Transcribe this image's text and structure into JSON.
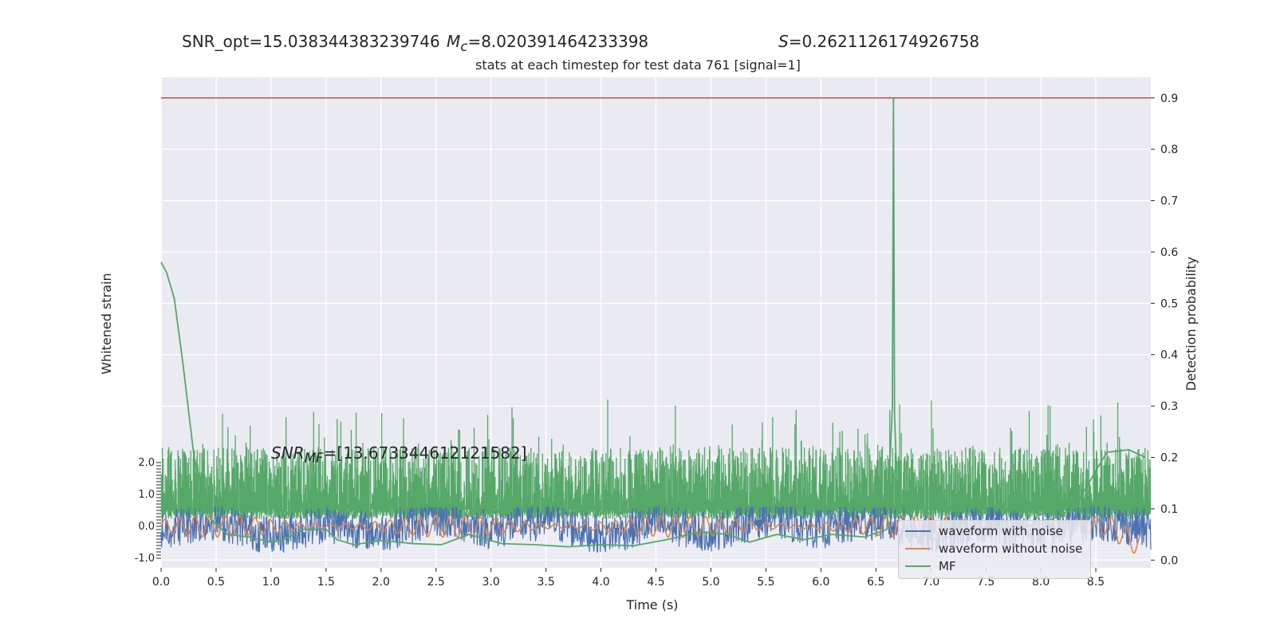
{
  "header": {
    "snr_opt": "SNR_opt=15.038344383239746",
    "mc_symbol": "M",
    "mc_sub": "c",
    "mc_value": "=8.020391464233398",
    "s_symbol": "S",
    "s_value": "=0.2621126174926758",
    "subtitle": "stats at each timestep for test data 761 [signal=1]",
    "snr_mf_symbol": "SNR",
    "snr_mf_sub": "MF",
    "snr_mf_value": "=[13.673344612121582]"
  },
  "colors": {
    "background": "#eaeaf2",
    "grid": "#ffffff",
    "noise": "#4c72b0",
    "clean": "#dd8452",
    "mf": "#55a868",
    "threshold": "#c44e52"
  },
  "chart_data": {
    "type": "line",
    "xlabel": "Time (s)",
    "ylabel_left": "Whitened strain",
    "ylabel_right": "Detection probability",
    "x_range": [
      0,
      9
    ],
    "x_ticks": [
      "0.0",
      "0.5",
      "1.0",
      "1.5",
      "2.0",
      "2.5",
      "3.0",
      "3.5",
      "4.0",
      "4.5",
      "5.0",
      "5.5",
      "6.0",
      "6.5",
      "7.0",
      "7.5",
      "8.0",
      "8.5"
    ],
    "x_tick_values": [
      0,
      0.5,
      1,
      1.5,
      2,
      2.5,
      3,
      3.5,
      4,
      4.5,
      5,
      5.5,
      6,
      6.5,
      7,
      7.5,
      8,
      8.5
    ],
    "y_right_range": [
      -0.015,
      0.94
    ],
    "y_right_ticks": [
      "0.0",
      "0.1",
      "0.2",
      "0.3",
      "0.4",
      "0.5",
      "0.6",
      "0.7",
      "0.8",
      "0.9"
    ],
    "y_right_tick_values": [
      0,
      0.1,
      0.2,
      0.3,
      0.4,
      0.5,
      0.6,
      0.7,
      0.8,
      0.9
    ],
    "y_left_range": [
      -1.0,
      2.0
    ],
    "y_left_ticks": [
      "2.0",
      "1.0",
      "0.0",
      "-1.0"
    ],
    "y_left_tick_values": [
      2.0,
      1.0,
      0.0,
      -1.0
    ],
    "threshold": 0.9,
    "legend": {
      "placement": "lower-right",
      "entries": [
        "waveform with noise",
        "waveform without noise",
        "MF"
      ]
    },
    "series": [
      {
        "name": "waveform with noise",
        "axis": "left",
        "note_envelope": [
          -0.8,
          0.6
        ],
        "x": [
          0,
          0.5,
          1,
          1.5,
          2,
          2.5,
          3,
          3.5,
          4,
          4.5,
          5,
          5.5,
          6,
          6.5,
          7,
          7.5,
          8,
          8.5,
          9
        ],
        "y": [
          -0.1,
          0.2,
          -0.3,
          0.1,
          -0.2,
          0.3,
          -0.1,
          0.2,
          -0.3,
          0.1,
          -0.2,
          0.3,
          -0.1,
          0.2,
          -0.3,
          0.1,
          -0.2,
          0.2,
          -0.1
        ]
      },
      {
        "name": "waveform without noise",
        "axis": "left",
        "x": [
          0,
          0.5,
          1,
          1.5,
          2,
          2.5,
          3,
          3.5,
          4,
          4.5,
          5,
          5.5,
          6,
          6.5,
          7,
          7.5,
          8,
          8.5,
          8.9
        ],
        "y": [
          0.0,
          0.05,
          -0.05,
          0.05,
          -0.05,
          0.05,
          -0.05,
          0.05,
          -0.05,
          0.05,
          -0.05,
          0.05,
          -0.05,
          0.05,
          -0.05,
          0.1,
          -0.1,
          0.2,
          -0.6
        ]
      },
      {
        "name": "MF",
        "axis": "right",
        "noise_band": [
          0.09,
          0.22
        ],
        "x": [
          0,
          0.05,
          0.12,
          0.2,
          0.3,
          0.45,
          0.6,
          0.8,
          1.0,
          1.1,
          1.3,
          1.5,
          1.6,
          1.75,
          2.0,
          2.3,
          2.55,
          2.8,
          3.1,
          3.4,
          3.7,
          4.0,
          4.3,
          4.6,
          4.9,
          5.15,
          5.35,
          5.6,
          5.85,
          6.1,
          6.4,
          6.6,
          6.65,
          6.66,
          6.67,
          6.7,
          6.8,
          7.0,
          7.3,
          7.6,
          8.0,
          8.3,
          8.6,
          8.8,
          8.95
        ],
        "y": [
          0.58,
          0.56,
          0.51,
          0.38,
          0.2,
          0.08,
          0.05,
          0.045,
          0.035,
          0.038,
          0.06,
          0.06,
          0.04,
          0.03,
          0.038,
          0.032,
          0.03,
          0.05,
          0.032,
          0.03,
          0.026,
          0.03,
          0.028,
          0.04,
          0.055,
          0.05,
          0.035,
          0.05,
          0.04,
          0.05,
          0.045,
          0.06,
          0.3,
          0.9,
          0.28,
          0.1,
          0.05,
          0.04,
          0.05,
          0.06,
          0.07,
          0.1,
          0.21,
          0.215,
          0.2
        ]
      }
    ]
  }
}
